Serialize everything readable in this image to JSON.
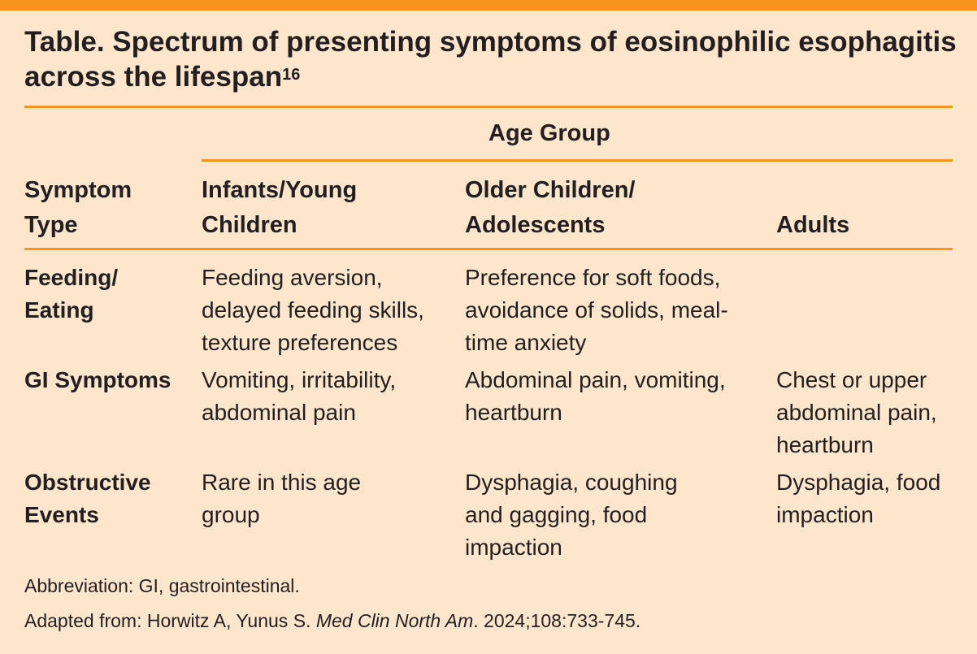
{
  "title": {
    "text": "Table. Spectrum of presenting symptoms of eosinophilic esophagitis across the lifespan",
    "superscript": "16"
  },
  "colors": {
    "accent": "#f7941d",
    "background": "#fde6cc"
  },
  "header": {
    "group": "Age Group",
    "columns": [
      "Symptom Type",
      "Infants/Young Children",
      "Older Children/ Adolescents",
      "Adults"
    ]
  },
  "rows": [
    {
      "type": "Feeding/ Eating",
      "cells": [
        "Feeding aversion, delayed feeding skills, texture preferences",
        "Preference for soft foods, avoidance of solids, meal-time anxiety",
        ""
      ]
    },
    {
      "type": "GI Symptoms",
      "cells": [
        "Vomiting, irritability, abdominal pain",
        "Abdominal pain, vomiting, heartburn",
        "Chest or upper abdominal pain, heartburn"
      ]
    },
    {
      "type": "Obstructive Events",
      "cells": [
        "Rare in this age group",
        "Dysphagia, coughing and gagging, food impaction",
        "Dysphagia, food impaction"
      ]
    }
  ],
  "footnotes": {
    "abbreviation": "Abbreviation: GI, gastrointestinal.",
    "source_prefix": "Adapted from: Horwitz A, Yunus S. ",
    "source_journal": "Med Clin North Am",
    "source_suffix": ". 2024;108:733-745."
  }
}
